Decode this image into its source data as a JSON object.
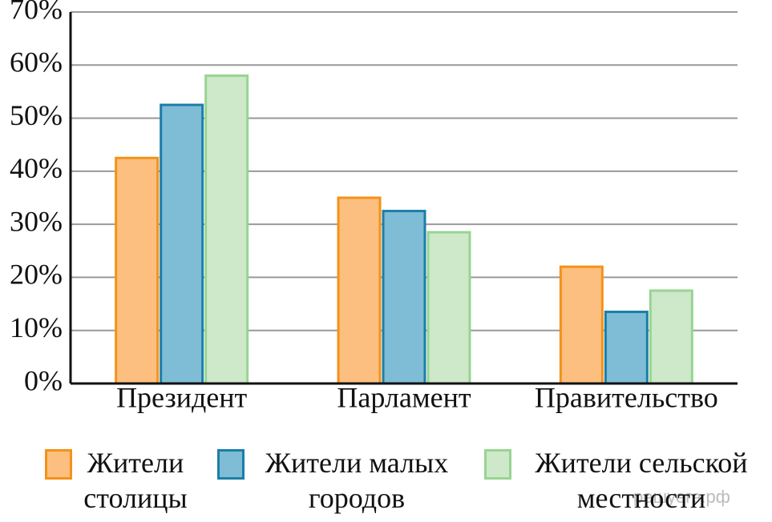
{
  "chart_data": {
    "type": "bar",
    "categories": [
      "Президент",
      "Парламент",
      "Правительство"
    ],
    "series": [
      {
        "name": "Жители столицы",
        "color": "#fdbf7f",
        "stroke": "#f39219",
        "values": [
          42.5,
          35,
          22
        ]
      },
      {
        "name": "Жители малых городов",
        "color": "#7fbcd6",
        "stroke": "#1b7ea8",
        "values": [
          52.5,
          32.5,
          13.5
        ]
      },
      {
        "name": "Жители сельской местности",
        "color": "#cde9c9",
        "stroke": "#98d493",
        "values": [
          58,
          28.5,
          17.5
        ]
      }
    ],
    "ylim": [
      0,
      70
    ],
    "yticks": [
      {
        "value": 0,
        "label": "0%"
      },
      {
        "value": 10,
        "label": "10%"
      },
      {
        "value": 20,
        "label": "20%"
      },
      {
        "value": 30,
        "label": "30%"
      },
      {
        "value": 40,
        "label": "40%"
      },
      {
        "value": 50,
        "label": "50%"
      },
      {
        "value": 60,
        "label": "60%"
      },
      {
        "value": 70,
        "label": "70%"
      }
    ],
    "grid": true,
    "watermark": "решуегэ.рф"
  }
}
